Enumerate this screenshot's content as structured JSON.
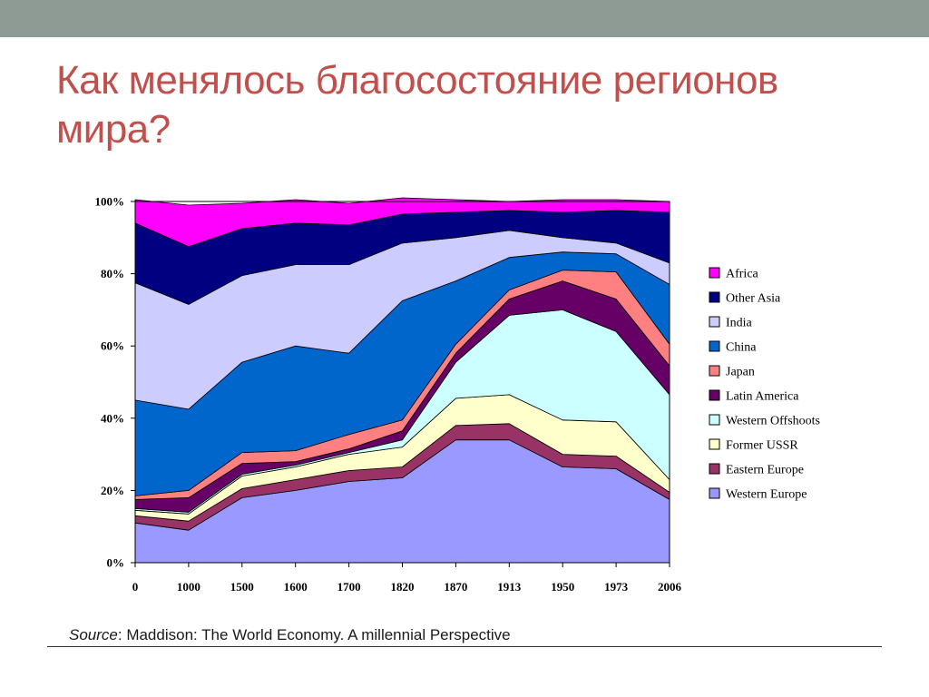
{
  "slide": {
    "title": "Как менялось благосостояние регионов мира?",
    "source_label": "Source",
    "source_text": ": Maddison: The World Economy. A millennial Perspective"
  },
  "colors": {
    "topbar": "#8e9a94",
    "title": "#c0504d"
  },
  "chart_data": {
    "type": "area",
    "stacked": true,
    "percent": true,
    "categories": [
      "0",
      "1000",
      "1500",
      "1600",
      "1700",
      "1820",
      "1870",
      "1913",
      "1950",
      "1973",
      "2006"
    ],
    "y_ticks": [
      "0%",
      "20%",
      "40%",
      "60%",
      "80%",
      "100%"
    ],
    "ylim": [
      0,
      100
    ],
    "grid": false,
    "legend_position": "right",
    "series": [
      {
        "name": "Western Europe",
        "color": "#9999ff",
        "values": [
          11,
          9,
          18,
          20,
          22.5,
          23.5,
          34,
          34,
          26.5,
          26,
          17.5
        ]
      },
      {
        "name": "Eastern Europe",
        "color": "#993366",
        "values": [
          2,
          2.5,
          2.5,
          3,
          3,
          3,
          4,
          4.5,
          3.5,
          3.5,
          2
        ]
      },
      {
        "name": "Former USSR",
        "color": "#ffffcc",
        "values": [
          1.5,
          2,
          3.5,
          3.5,
          4.5,
          5.5,
          7.5,
          8,
          9.5,
          9.5,
          3.5
        ]
      },
      {
        "name": "Western Offshoots",
        "color": "#ccffff",
        "values": [
          0.5,
          0.5,
          0.5,
          0.5,
          0.5,
          2,
          10,
          22,
          30.5,
          25,
          23.5
        ]
      },
      {
        "name": "Latin America",
        "color": "#660066",
        "values": [
          2.5,
          4,
          3,
          1,
          1,
          2.5,
          2.5,
          4.5,
          8,
          9,
          8
        ]
      },
      {
        "name": "Japan",
        "color": "#ff8080",
        "values": [
          1,
          2,
          3,
          3,
          4,
          3,
          2.5,
          2.5,
          3,
          7.5,
          6
        ]
      },
      {
        "name": "China",
        "color": "#0066cc",
        "values": [
          26.5,
          22.5,
          25,
          29,
          22.5,
          33,
          17.5,
          9,
          5,
          5,
          16.5
        ]
      },
      {
        "name": "India",
        "color": "#ccccff",
        "values": [
          32.5,
          29,
          24,
          22.5,
          24.5,
          16,
          12,
          7.5,
          4,
          3,
          6
        ]
      },
      {
        "name": "Other Asia",
        "color": "#000080",
        "values": [
          16.5,
          16,
          13,
          11.5,
          11,
          8,
          7,
          5.5,
          7,
          9,
          14
        ]
      },
      {
        "name": "Africa",
        "color": "#ff00ff",
        "values": [
          6.5,
          11.5,
          7,
          6.5,
          6,
          4.5,
          3.5,
          2.5,
          3.5,
          3,
          3
        ]
      }
    ]
  }
}
